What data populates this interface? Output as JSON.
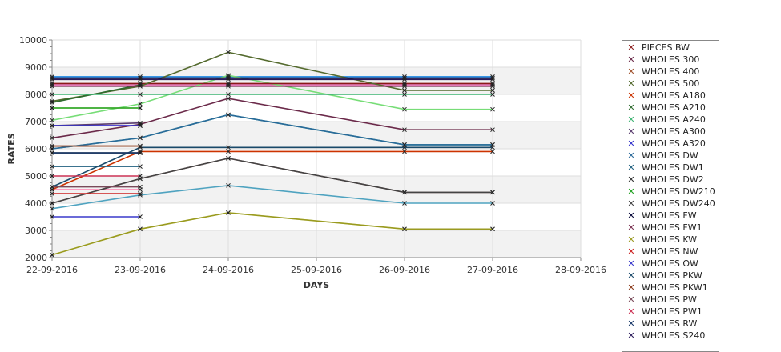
{
  "chart_data": {
    "type": "line",
    "title": "",
    "xlabel": "DAYS",
    "ylabel": "RATES",
    "ylim": [
      2000,
      10000
    ],
    "yticks": [
      2000,
      3000,
      4000,
      5000,
      6000,
      7000,
      8000,
      9000,
      10000
    ],
    "ytick_labels": [
      "2000",
      "3000",
      "4000",
      "5000",
      "6000",
      "7000",
      "8000",
      "9000",
      "10000"
    ],
    "xlim": [
      "2016-09-22",
      "2016-09-28"
    ],
    "xticks": [
      "2016-09-22",
      "2016-09-23",
      "2016-09-24",
      "2016-09-25",
      "2016-09-26",
      "2016-09-27",
      "2016-09-28"
    ],
    "xtick_labels": [
      "22-09-2016",
      "23-09-2016",
      "24-09-2016",
      "25-09-2016",
      "26-09-2016",
      "27-09-2016",
      "28-09-2016"
    ],
    "grid": true,
    "legend_position": "right",
    "series": [
      {
        "name": "PIECES BW",
        "color": "#8b1a1a",
        "marker": "x",
        "points": [
          [
            "2016-09-22",
            8400
          ],
          [
            "2016-09-23",
            8400
          ],
          [
            "2016-09-24",
            8400
          ],
          [
            "2016-09-26",
            8400
          ],
          [
            "2016-09-27",
            8400
          ]
        ]
      },
      {
        "name": "WHOLES 300",
        "color": "#6b2a4a",
        "marker": "x",
        "points": [
          [
            "2016-09-22",
            6400
          ],
          [
            "2016-09-23",
            6900
          ],
          [
            "2016-09-24",
            7850
          ],
          [
            "2016-09-26",
            6700
          ],
          [
            "2016-09-27",
            6700
          ]
        ]
      },
      {
        "name": "WHOLES 400",
        "color": "#a0522d",
        "marker": "x",
        "points": [
          [
            "2016-09-22",
            6100
          ],
          [
            "2016-09-23",
            6100
          ]
        ]
      },
      {
        "name": "WHOLES 500",
        "color": "#556b2f",
        "marker": "x",
        "points": [
          [
            "2016-09-22",
            7750
          ],
          [
            "2016-09-23",
            8300
          ],
          [
            "2016-09-24",
            9550
          ],
          [
            "2016-09-26",
            8150
          ],
          [
            "2016-09-27",
            8150
          ]
        ]
      },
      {
        "name": "WHOLES A180",
        "color": "#cc3300",
        "marker": "x",
        "points": [
          [
            "2016-09-22",
            4500
          ],
          [
            "2016-09-23",
            5900
          ],
          [
            "2016-09-24",
            5900
          ],
          [
            "2016-09-26",
            5900
          ],
          [
            "2016-09-27",
            5900
          ]
        ]
      },
      {
        "name": "WHOLES A210",
        "color": "#2e6b2e",
        "marker": "x",
        "points": [
          [
            "2016-09-22",
            7700
          ],
          [
            "2016-09-23",
            8350
          ]
        ]
      },
      {
        "name": "WHOLES A240",
        "color": "#3cb371",
        "marker": "x",
        "points": [
          [
            "2016-09-22",
            8000
          ],
          [
            "2016-09-23",
            8000
          ],
          [
            "2016-09-24",
            8000
          ],
          [
            "2016-09-26",
            8000
          ],
          [
            "2016-09-27",
            8000
          ]
        ]
      },
      {
        "name": "WHOLES A300",
        "color": "#5a3c6e",
        "marker": "x",
        "points": [
          [
            "2016-09-22",
            6850
          ],
          [
            "2016-09-23",
            6950
          ]
        ]
      },
      {
        "name": "WHOLES A320",
        "color": "#3333cc",
        "marker": "x",
        "points": [
          [
            "2016-09-22",
            6850
          ],
          [
            "2016-09-23",
            6850
          ]
        ]
      },
      {
        "name": "WHOLES DW",
        "color": "#2a6a9a",
        "marker": "x",
        "points": [
          [
            "2016-09-22",
            6000
          ],
          [
            "2016-09-23",
            6400
          ],
          [
            "2016-09-24",
            7250
          ],
          [
            "2016-09-26",
            6150
          ],
          [
            "2016-09-27",
            6150
          ]
        ]
      },
      {
        "name": "WHOLES DW1",
        "color": "#1f5f7f",
        "marker": "x",
        "points": [
          [
            "2016-09-22",
            5350
          ],
          [
            "2016-09-23",
            5350
          ]
        ]
      },
      {
        "name": "WHOLES DW2",
        "color": "#333333",
        "marker": "x",
        "points": [
          [
            "2016-09-22",
            5850
          ],
          [
            "2016-09-23",
            5850
          ]
        ]
      },
      {
        "name": "WHOLES DW210",
        "color": "#20a020",
        "marker": "x",
        "points": [
          [
            "2016-09-22",
            7500
          ],
          [
            "2016-09-23",
            7500
          ]
        ]
      },
      {
        "name": "WHOLES DW240",
        "color": "#444444",
        "marker": "x",
        "points": [
          [
            "2016-09-22",
            4000
          ],
          [
            "2016-09-23",
            4900
          ],
          [
            "2016-09-24",
            5650
          ],
          [
            "2016-09-26",
            4400
          ],
          [
            "2016-09-27",
            4400
          ]
        ]
      },
      {
        "name": "WHOLES FW",
        "color": "#000033",
        "marker": "x",
        "points": [
          [
            "2016-09-22",
            8600
          ],
          [
            "2016-09-23",
            8600
          ],
          [
            "2016-09-24",
            8600
          ],
          [
            "2016-09-26",
            8600
          ],
          [
            "2016-09-27",
            8600
          ]
        ]
      },
      {
        "name": "WHOLES FW1",
        "color": "#7a3050",
        "marker": "x",
        "points": [
          [
            "2016-09-22",
            8300
          ],
          [
            "2016-09-23",
            8300
          ],
          [
            "2016-09-24",
            8300
          ],
          [
            "2016-09-26",
            8300
          ],
          [
            "2016-09-27",
            8300
          ]
        ]
      },
      {
        "name": "WHOLES KW",
        "color": "#9a9a20",
        "marker": "x",
        "points": [
          [
            "2016-09-22",
            2100
          ],
          [
            "2016-09-23",
            3050
          ],
          [
            "2016-09-24",
            3650
          ],
          [
            "2016-09-26",
            3050
          ],
          [
            "2016-09-27",
            3050
          ]
        ]
      },
      {
        "name": "WHOLES NW",
        "color": "#cc2222",
        "marker": "x",
        "points": [
          [
            "2016-09-22",
            4350
          ],
          [
            "2016-09-23",
            4350
          ]
        ]
      },
      {
        "name": "WHOLES OW",
        "color": "#3a3acc",
        "marker": "x",
        "points": [
          [
            "2016-09-22",
            3500
          ],
          [
            "2016-09-23",
            3500
          ]
        ]
      },
      {
        "name": "WHOLES PKW",
        "color": "#1a4a6a",
        "marker": "x",
        "points": [
          [
            "2016-09-22",
            4600
          ],
          [
            "2016-09-23",
            6050
          ],
          [
            "2016-09-24",
            6050
          ],
          [
            "2016-09-26",
            6050
          ],
          [
            "2016-09-27",
            6050
          ]
        ]
      },
      {
        "name": "WHOLES PKW1",
        "color": "#8b3a1a",
        "marker": "x",
        "points": [
          [
            "2016-09-22",
            6100
          ],
          [
            "2016-09-23",
            6100
          ]
        ]
      },
      {
        "name": "WHOLES PW",
        "color": "#7a4a5a",
        "marker": "x",
        "points": [
          [
            "2016-09-22",
            4600
          ],
          [
            "2016-09-23",
            4600
          ]
        ]
      },
      {
        "name": "WHOLES PW1",
        "color": "#cc3355",
        "marker": "x",
        "points": [
          [
            "2016-09-22",
            5000
          ],
          [
            "2016-09-23",
            5000
          ]
        ]
      },
      {
        "name": "WHOLES RW",
        "color": "#1a3a6a",
        "marker": "x",
        "points": [
          [
            "2016-09-22",
            5850
          ],
          [
            "2016-09-23",
            5850
          ]
        ]
      },
      {
        "name": "WHOLES S240",
        "color": "#2a1a5a",
        "marker": "x",
        "points": [
          [
            "2016-09-22",
            8550
          ],
          [
            "2016-09-23",
            8550
          ],
          [
            "2016-09-24",
            8550
          ],
          [
            "2016-09-26",
            8550
          ],
          [
            "2016-09-27",
            8550
          ]
        ]
      }
    ],
    "unlisted_series": [
      {
        "color": "#1e88e5",
        "points": [
          [
            "2016-09-22",
            8650
          ],
          [
            "2016-09-23",
            8650
          ],
          [
            "2016-09-24",
            8650
          ],
          [
            "2016-09-26",
            8650
          ],
          [
            "2016-09-27",
            8650
          ]
        ]
      },
      {
        "color": "#e066b0",
        "points": [
          [
            "2016-09-22",
            8350
          ],
          [
            "2016-09-23",
            8350
          ],
          [
            "2016-09-24",
            8350
          ],
          [
            "2016-09-26",
            8350
          ],
          [
            "2016-09-27",
            8350
          ]
        ]
      },
      {
        "color": "#77dd77",
        "points": [
          [
            "2016-09-22",
            7050
          ],
          [
            "2016-09-23",
            7650
          ],
          [
            "2016-09-24",
            8700
          ],
          [
            "2016-09-26",
            7450
          ],
          [
            "2016-09-27",
            7450
          ]
        ]
      },
      {
        "color": "#bbe36a",
        "points": [
          [
            "2016-09-22",
            7500
          ],
          [
            "2016-09-23",
            7500
          ]
        ]
      },
      {
        "color": "#7b2cf0",
        "points": [
          [
            "2016-09-22",
            6850
          ],
          [
            "2016-09-23",
            6850
          ]
        ]
      },
      {
        "color": "#2a9d8f",
        "points": [
          [
            "2016-09-22",
            6000
          ],
          [
            "2016-09-23",
            6400
          ],
          [
            "2016-09-24",
            7250
          ],
          [
            "2016-09-26",
            6150
          ],
          [
            "2016-09-27",
            6150
          ]
        ]
      },
      {
        "color": "#ff80b0",
        "points": [
          [
            "2016-09-22",
            4500
          ],
          [
            "2016-09-23",
            4500
          ]
        ]
      },
      {
        "color": "#4fa3c0",
        "points": [
          [
            "2016-09-22",
            3800
          ],
          [
            "2016-09-23",
            4300
          ],
          [
            "2016-09-24",
            4650
          ],
          [
            "2016-09-26",
            4000
          ],
          [
            "2016-09-27",
            4000
          ]
        ]
      },
      {
        "color": "#e2f0a0",
        "points": [
          [
            "2016-09-22",
            2100
          ],
          [
            "2016-09-23",
            3050
          ],
          [
            "2016-09-24",
            3650
          ],
          [
            "2016-09-26",
            3050
          ],
          [
            "2016-09-27",
            3050
          ]
        ]
      },
      {
        "color": "#9b6a6a",
        "points": [
          [
            "2016-09-22",
            4000
          ],
          [
            "2016-09-23",
            4900
          ],
          [
            "2016-09-24",
            5650
          ],
          [
            "2016-09-26",
            4400
          ],
          [
            "2016-09-27",
            4400
          ]
        ]
      }
    ]
  },
  "colors": {
    "band": "#f2f2f2",
    "grid": "#dddddd",
    "axis": "#888888"
  }
}
